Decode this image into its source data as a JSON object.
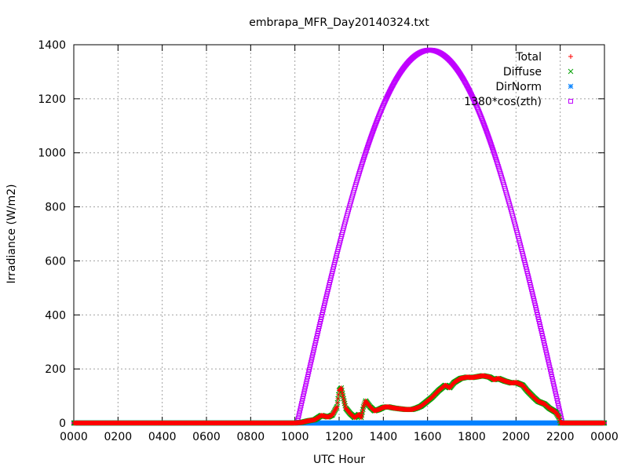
{
  "chart_data": {
    "type": "scatter",
    "title": "embrapa_MFR_Day20140324.txt",
    "xlabel": "UTC Hour",
    "ylabel": "Irradiance (W/m2)",
    "xlim": [
      0,
      24
    ],
    "ylim": [
      0,
      1400
    ],
    "grid": true,
    "legend_position": "top-right",
    "x_ticks": [
      "0000",
      "0200",
      "0400",
      "0600",
      "0800",
      "1000",
      "1200",
      "1400",
      "1600",
      "1800",
      "2000",
      "2200",
      "0000"
    ],
    "x_tick_values": [
      0,
      2,
      4,
      6,
      8,
      10,
      12,
      14,
      16,
      18,
      20,
      22,
      24
    ],
    "y_ticks": [
      "0",
      "200",
      "400",
      "600",
      "800",
      "1000",
      "1200",
      "1400"
    ],
    "y_tick_values": [
      0,
      200,
      400,
      600,
      800,
      1000,
      1200,
      1400
    ],
    "series": [
      {
        "name": "Total",
        "color": "#ff0000",
        "marker": "plus",
        "x": [
          0,
          10.0,
          10.3,
          10.6,
          10.9,
          11.2,
          11.5,
          11.7,
          11.9,
          12.0,
          12.1,
          12.2,
          12.3,
          12.5,
          12.7,
          12.9,
          13.0,
          13.1,
          13.2,
          13.4,
          13.6,
          13.8,
          14.0,
          14.2,
          14.5,
          14.8,
          15.0,
          15.3,
          15.5,
          15.7,
          15.9,
          16.2,
          16.5,
          16.8,
          17.0,
          17.2,
          17.5,
          17.8,
          18.0,
          18.3,
          18.5,
          18.8,
          19.0,
          19.2,
          19.5,
          19.8,
          20.0,
          20.3,
          20.5,
          20.8,
          21.0,
          21.3,
          21.5,
          21.8,
          21.95,
          22.0,
          24
        ],
        "y": [
          0,
          0,
          2,
          8,
          12,
          28,
          22,
          30,
          60,
          120,
          130,
          90,
          55,
          35,
          20,
          32,
          20,
          60,
          82,
          60,
          45,
          50,
          58,
          60,
          55,
          52,
          50,
          50,
          55,
          62,
          75,
          95,
          120,
          140,
          130,
          150,
          165,
          170,
          168,
          172,
          175,
          170,
          160,
          165,
          155,
          148,
          150,
          140,
          120,
          95,
          80,
          70,
          55,
          40,
          20,
          0,
          0
        ]
      },
      {
        "name": "Diffuse",
        "color": "#00a000",
        "marker": "cross",
        "x": [
          0,
          10.0,
          10.3,
          10.6,
          10.9,
          11.2,
          11.5,
          11.7,
          11.9,
          12.0,
          12.1,
          12.2,
          12.3,
          12.5,
          12.7,
          12.9,
          13.0,
          13.1,
          13.2,
          13.4,
          13.6,
          13.8,
          14.0,
          14.2,
          14.5,
          14.8,
          15.0,
          15.3,
          15.5,
          15.7,
          15.9,
          16.2,
          16.5,
          16.8,
          17.0,
          17.2,
          17.5,
          17.8,
          18.0,
          18.3,
          18.5,
          18.8,
          19.0,
          19.2,
          19.5,
          19.8,
          20.0,
          20.3,
          20.5,
          20.8,
          21.0,
          21.3,
          21.5,
          21.8,
          21.95,
          22.0,
          24
        ],
        "y": [
          0,
          0,
          2,
          8,
          12,
          28,
          22,
          30,
          60,
          120,
          130,
          90,
          55,
          35,
          20,
          32,
          20,
          60,
          82,
          60,
          45,
          50,
          58,
          60,
          55,
          52,
          50,
          50,
          55,
          62,
          75,
          95,
          120,
          140,
          130,
          150,
          165,
          170,
          168,
          172,
          175,
          170,
          160,
          165,
          155,
          148,
          150,
          140,
          120,
          95,
          80,
          70,
          55,
          40,
          20,
          0,
          0
        ]
      },
      {
        "name": "DirNorm",
        "color": "#0080ff",
        "marker": "star",
        "x": [
          0,
          24
        ],
        "y": [
          0,
          0
        ]
      },
      {
        "name": "1380*cos(zth)",
        "color": "#c000ff",
        "marker": "square",
        "x": [
          0,
          10.1,
          22.1,
          24
        ],
        "y": [
          0,
          0,
          0,
          0
        ],
        "formula_peak_x": 16.1,
        "formula_peak_y": 1380
      }
    ]
  }
}
